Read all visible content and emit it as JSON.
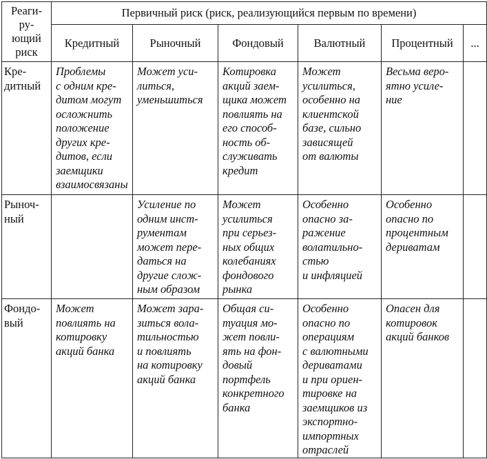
{
  "table": {
    "corner_header": "Реаги-\nру-\nющий\nриск",
    "group_header": "Первичный риск (риск, реализующийся первым по времени)",
    "columns": [
      "Кредитный",
      "Рыночный",
      "Фондовый",
      "Валютный",
      "Процентный",
      "..."
    ],
    "rows": [
      {
        "label": "Кре-\nдитный",
        "cells": [
          "Проблемы\nс одним кре-\nдитом могут\nосложнить\nположение\nдругих кре-\nдитов, если\nзаемщики\nвзаимосвязаны",
          "Может уси-\nлиться,\nуменьшиться",
          "Котировка\nакций заем-\nщика может\nповлиять на\nего способ-\nность об-\nслуживать\nкредит",
          "Может\nусилиться,\nособенно на\nклиентской\nбазе, сильно\nзависящей\nот валюты",
          "Весьма веро-\nятно усиле-\nние",
          ""
        ]
      },
      {
        "label": "Рыноч-\nный",
        "cells": [
          "",
          "Усиление по\nодним инст-\nрументам\nможет пере-\nдаться на\nдругие слож-\nным образом",
          "Может\nусилиться\nпри серьез-\nных общих\nколебаниях\nфондового\nрынка",
          "Особенно\nопасно за-\nражение\nволатильно-\nстью\nи инфляцией",
          "Особенно\nопасно по\nпроцентным\nдериватам",
          ""
        ]
      },
      {
        "label": "Фондо-\nвый",
        "cells": [
          "Может\nповлиять на\nкотировку\nакций банка",
          "Может зара-\nзиться вола-\nтильностью\nи повлиять\nна котировку\nакций банка",
          "Общая си-\nтуация мо-\nжет повли-\nять на фон-\nдовый\nпортфель\nконкретного\nбанка",
          "Особенно\nопасно по\nоперациям\nс валютными\nдериватами\nи при ориен-\nтировке на\nзаемщиков из\nэкспортно-\nимпортных\nотраслей",
          "Опасен для\nкотировок\nакций банков",
          ""
        ]
      }
    ]
  }
}
